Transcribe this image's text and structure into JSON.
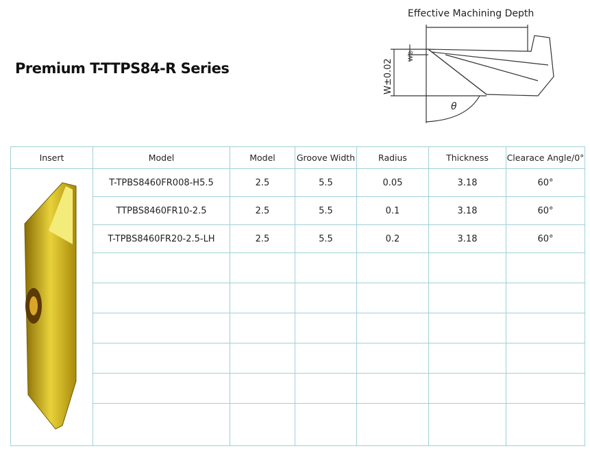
{
  "header": {
    "title": "Premium T-TTPS84-R Series"
  },
  "diagram": {
    "depth_label": "Effective Machining Depth",
    "width_label": "W±0.02",
    "small_label": "W⊘",
    "angle_label": "θ"
  },
  "table": {
    "columns": [
      "Insert",
      "Model",
      "Model",
      "Groove Width",
      "Radius",
      "Thickness",
      "Clearace Angle/0°"
    ],
    "rows": [
      [
        "T-TPBS8460FR008-H5.5",
        "2.5",
        "5.5",
        "0.05",
        "3.18",
        "60°"
      ],
      [
        "TTPBS8460FR10-2.5",
        "2.5",
        "5.5",
        "0.1",
        "3.18",
        "60°"
      ],
      [
        "T-TPBS8460FR20-2.5-LH",
        "2.5",
        "5.5",
        "0.2",
        "3.18",
        "60°"
      ]
    ]
  }
}
